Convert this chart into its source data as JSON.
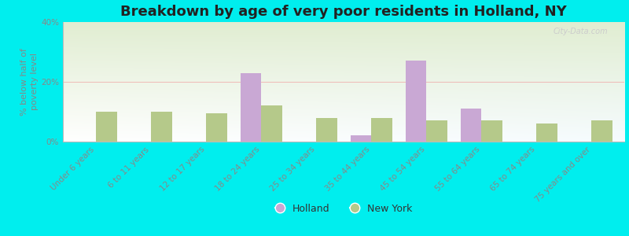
{
  "title": "Breakdown by age of very poor residents in Holland, NY",
  "ylabel": "% below half of\npoverty level",
  "categories": [
    "Under 6 years",
    "6 to 11 years",
    "12 to 17 years",
    "18 to 24 years",
    "25 to 34 years",
    "35 to 44 years",
    "45 to 54 years",
    "55 to 64 years",
    "65 to 74 years",
    "75 years and over"
  ],
  "holland_values": [
    0,
    0,
    0,
    23,
    0,
    2,
    27,
    11,
    0,
    0
  ],
  "newyork_values": [
    10,
    10,
    9.5,
    12,
    8,
    8,
    7,
    7,
    6,
    7
  ],
  "holland_color": "#c9a8d4",
  "newyork_color": "#b5c98a",
  "background_color": "#00eeee",
  "ylim": [
    0,
    40
  ],
  "yticks": [
    0,
    20,
    40
  ],
  "ytick_labels": [
    "0%",
    "20%",
    "40%"
  ],
  "bar_width": 0.38,
  "legend_labels": [
    "Holland",
    "New York"
  ],
  "title_fontsize": 13,
  "tick_fontsize": 7.5,
  "ylabel_fontsize": 8,
  "legend_fontsize": 9
}
